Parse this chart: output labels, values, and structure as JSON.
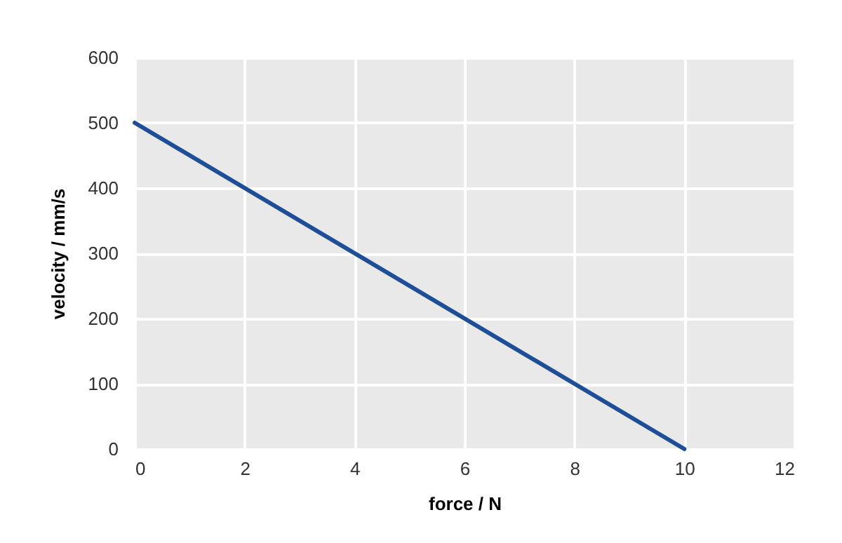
{
  "chart_data": {
    "type": "line",
    "xlabel": "force / N",
    "ylabel": "velocity / mm/s",
    "x": [
      0,
      10
    ],
    "series": [
      {
        "color": "#1f4e99",
        "values": [
          500,
          0
        ]
      }
    ],
    "xlim": [
      0,
      12
    ],
    "xticks": [
      0,
      2,
      4,
      6,
      8,
      10,
      12
    ],
    "ylim": [
      0,
      600
    ],
    "yticks": [
      0,
      100,
      200,
      300,
      400,
      500,
      600
    ],
    "grid": true,
    "marker": "none",
    "line_style": "solid"
  }
}
